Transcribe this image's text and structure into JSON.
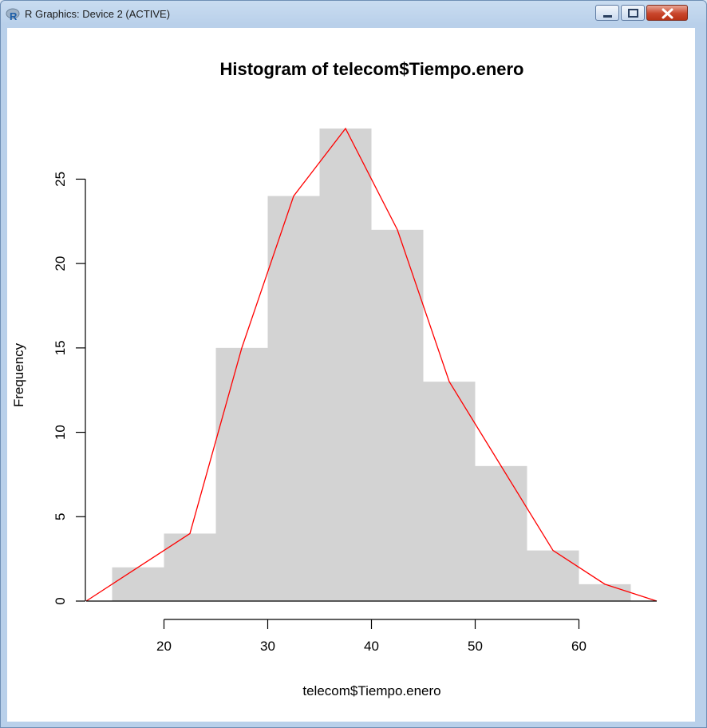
{
  "window": {
    "title": "R Graphics: Device 2 (ACTIVE)",
    "icon": "r-logo-icon",
    "controls": [
      "minimize-icon",
      "maximize-icon",
      "close-icon"
    ]
  },
  "chart_data": {
    "type": "bar",
    "title": "Histogram of telecom$Tiempo.enero",
    "xlabel": "telecom$Tiempo.enero",
    "ylabel": "Frequency",
    "bins": [
      [
        15,
        20
      ],
      [
        20,
        25
      ],
      [
        25,
        30
      ],
      [
        30,
        35
      ],
      [
        35,
        40
      ],
      [
        40,
        45
      ],
      [
        45,
        50
      ],
      [
        50,
        55
      ],
      [
        55,
        60
      ],
      [
        60,
        65
      ]
    ],
    "values": [
      2,
      4,
      15,
      24,
      28,
      22,
      13,
      8,
      3,
      1
    ],
    "bar_color": "#d3d3d3",
    "xticks": [
      20,
      30,
      40,
      50,
      60
    ],
    "yticks": [
      0,
      5,
      10,
      15,
      20,
      25
    ],
    "xlim": [
      12.5,
      67.5
    ],
    "ylim": [
      0,
      28
    ],
    "frequency_polygon": {
      "color": "#ff0000",
      "x": [
        12.5,
        17.5,
        22.5,
        27.5,
        32.5,
        37.5,
        42.5,
        47.5,
        52.5,
        57.5,
        62.5,
        67.5
      ],
      "y": [
        0,
        2,
        4,
        15,
        24,
        28,
        22,
        13,
        8,
        3,
        1,
        0
      ]
    }
  }
}
